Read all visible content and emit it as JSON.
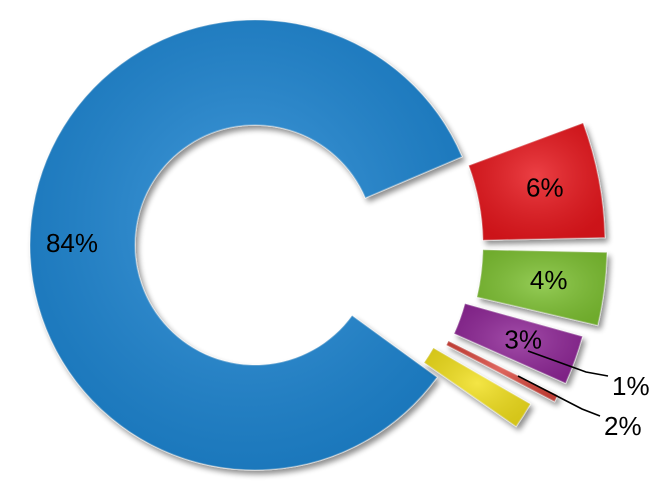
{
  "chart_data": {
    "type": "pie",
    "style": "exploded-doughnut",
    "categories": [
      "",
      "",
      "",
      "",
      "",
      ""
    ],
    "values": [
      84,
      6,
      4,
      3,
      1,
      2
    ],
    "labels": [
      "84%",
      "6%",
      "4%",
      "3%",
      "1%",
      "2%"
    ],
    "colors": [
      "#1a86d4",
      "#e8151b",
      "#7ec231",
      "#8f2597",
      "#d9463e",
      "#f2e01c"
    ],
    "legend": "none"
  }
}
